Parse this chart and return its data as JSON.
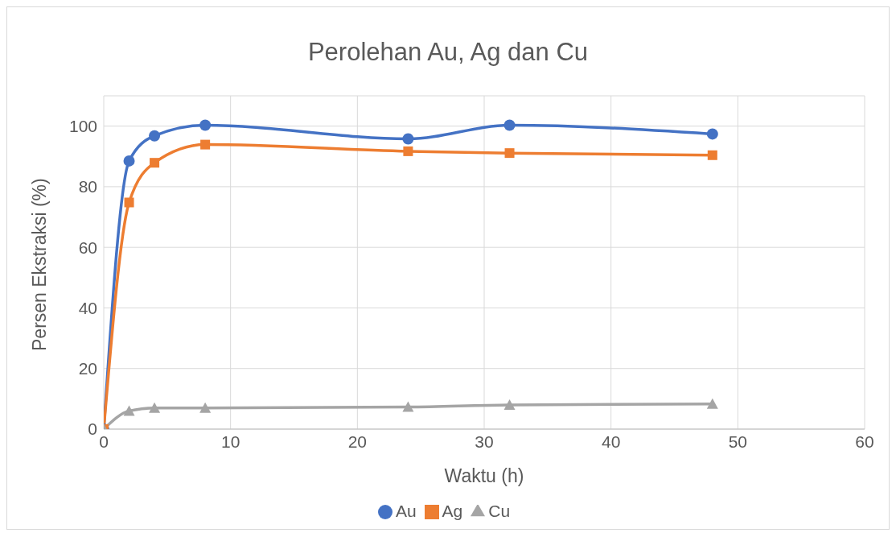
{
  "chart_data": {
    "type": "line",
    "title": "Perolehan Au, Ag dan Cu",
    "xlabel": "Waktu (h)",
    "ylabel": "Persen Ekstraksi (%)",
    "x": [
      0,
      2,
      4,
      8,
      24,
      32,
      48
    ],
    "series": [
      {
        "name": "Au",
        "color": "#4472c4",
        "marker": "circle",
        "values": [
          0,
          88.5,
          96.8,
          100.3,
          95.8,
          100.3,
          97.4
        ]
      },
      {
        "name": "Ag",
        "color": "#ed7d31",
        "marker": "square",
        "values": [
          0,
          74.8,
          87.9,
          93.9,
          91.7,
          91.1,
          90.4
        ]
      },
      {
        "name": "Cu",
        "color": "#a5a5a5",
        "marker": "triangle",
        "values": [
          0,
          6,
          7,
          7,
          7.3,
          8,
          8.3
        ]
      }
    ],
    "xlim": [
      0,
      60
    ],
    "xticks": [
      0,
      10,
      20,
      30,
      40,
      50,
      60
    ],
    "ylim": [
      0,
      110
    ],
    "yticks": [
      0,
      20,
      40,
      60,
      80,
      100
    ],
    "grid": true,
    "legend": "bottom",
    "line_style": "solid"
  }
}
